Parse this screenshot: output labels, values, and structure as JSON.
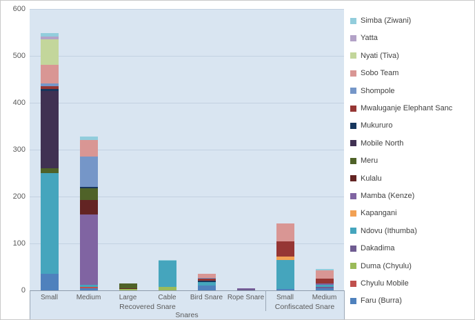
{
  "chart_data": {
    "type": "bar",
    "subtype": "stacked-column",
    "title": "",
    "axis_title": "Snares",
    "ylim": [
      0,
      600
    ],
    "yticks": [
      0,
      100,
      200,
      300,
      400,
      500,
      600
    ],
    "grid": true,
    "plot_bg": "#d9e5f1",
    "legend_position": "right",
    "legend_order": "reverse-of-stack",
    "categories": [
      "Small",
      "Medium",
      "Large",
      "Cable",
      "Bird Snare",
      "Rope Snare",
      "Small",
      "Medium"
    ],
    "groups": [
      {
        "label": "Recovered Snare",
        "start": 0,
        "end": 5
      },
      {
        "label": "Confiscated Snare",
        "start": 6,
        "end": 7
      }
    ],
    "series": [
      {
        "name": "Faru (Burra)",
        "color": "#4F81BD",
        "values": [
          35,
          5,
          0,
          0,
          10,
          0,
          3,
          5
        ]
      },
      {
        "name": "Chyulu Mobile",
        "color": "#C0504D",
        "values": [
          0,
          2,
          0,
          0,
          0,
          0,
          0,
          0
        ]
      },
      {
        "name": "Duma (Chyulu)",
        "color": "#9BBB59",
        "values": [
          0,
          0,
          3,
          8,
          0,
          0,
          0,
          0
        ]
      },
      {
        "name": "Dakadima",
        "color": "#6F5C91",
        "values": [
          0,
          0,
          0,
          0,
          0,
          4,
          0,
          2
        ]
      },
      {
        "name": "Ndovu (Ithumba)",
        "color": "#45A5BD",
        "values": [
          215,
          5,
          0,
          55,
          7,
          0,
          62,
          5
        ]
      },
      {
        "name": "Kapangani",
        "color": "#F2A154",
        "values": [
          0,
          0,
          0,
          0,
          0,
          0,
          7,
          0
        ]
      },
      {
        "name": "Mamba (Kenze)",
        "color": "#8064A2",
        "values": [
          0,
          150,
          0,
          0,
          0,
          1,
          0,
          3
        ]
      },
      {
        "name": "Kulalu",
        "color": "#632423",
        "values": [
          0,
          30,
          2,
          0,
          0,
          0,
          0,
          0
        ]
      },
      {
        "name": "Meru",
        "color": "#4F6228",
        "values": [
          10,
          25,
          10,
          0,
          0,
          0,
          0,
          0
        ]
      },
      {
        "name": "Mobile North",
        "color": "#403152",
        "values": [
          165,
          0,
          0,
          0,
          0,
          0,
          0,
          0
        ]
      },
      {
        "name": "Mukururo",
        "color": "#17365D",
        "values": [
          5,
          3,
          0,
          0,
          3,
          0,
          0,
          0
        ]
      },
      {
        "name": "Mwaluganje Elephant Sanc",
        "color": "#963634",
        "values": [
          6,
          0,
          0,
          0,
          5,
          0,
          33,
          10
        ]
      },
      {
        "name": "Shompole",
        "color": "#7596C8",
        "values": [
          5,
          65,
          0,
          0,
          2,
          0,
          0,
          0
        ]
      },
      {
        "name": "Sobo Team",
        "color": "#D99694",
        "values": [
          40,
          35,
          0,
          0,
          8,
          0,
          38,
          18
        ]
      },
      {
        "name": "Nyati (Tiva)",
        "color": "#C3D69B",
        "values": [
          55,
          0,
          0,
          0,
          0,
          0,
          0,
          0
        ]
      },
      {
        "name": "Yatta",
        "color": "#B3A2C7",
        "values": [
          5,
          0,
          0,
          0,
          0,
          0,
          0,
          0
        ]
      },
      {
        "name": "Simba (Ziwani)",
        "color": "#92CDDC",
        "values": [
          8,
          8,
          0,
          2,
          0,
          0,
          0,
          2
        ]
      }
    ]
  }
}
